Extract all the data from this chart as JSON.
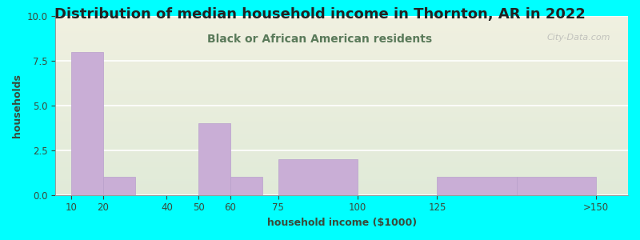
{
  "title": "Distribution of median household income in Thornton, AR in 2022",
  "subtitle": "Black or African American residents",
  "xlabel": "household income ($1000)",
  "ylabel": "households",
  "bar_color": "#c9aed6",
  "bar_edge_color": "#b8a0cc",
  "ylim": [
    0,
    10
  ],
  "yticks": [
    0,
    2.5,
    5,
    7.5,
    10
  ],
  "background_outer": "#00ffff",
  "background_top": "#f0f0e0",
  "background_bottom": "#e0ead8",
  "title_color": "#222222",
  "subtitle_color": "#5a7a5a",
  "axis_label_color": "#3a4a3a",
  "tick_color": "#3a4a3a",
  "watermark": "City-Data.com",
  "title_fontsize": 13,
  "subtitle_fontsize": 10,
  "label_fontsize": 9,
  "tick_fontsize": 8.5,
  "bar_lefts": [
    10,
    20,
    40,
    50,
    60,
    75,
    100,
    125,
    150
  ],
  "bar_widths": [
    10,
    10,
    10,
    10,
    10,
    25,
    25,
    25,
    25
  ],
  "bar_values": [
    8,
    1,
    0,
    4,
    1,
    2,
    0,
    1,
    1
  ],
  "xtick_positions": [
    10,
    20,
    40,
    50,
    60,
    75,
    100,
    125,
    175
  ],
  "xtick_labels": [
    "10",
    "20",
    "40",
    "50",
    "60",
    "75",
    "100",
    "125",
    ">150"
  ],
  "xmin": 5,
  "xmax": 185
}
